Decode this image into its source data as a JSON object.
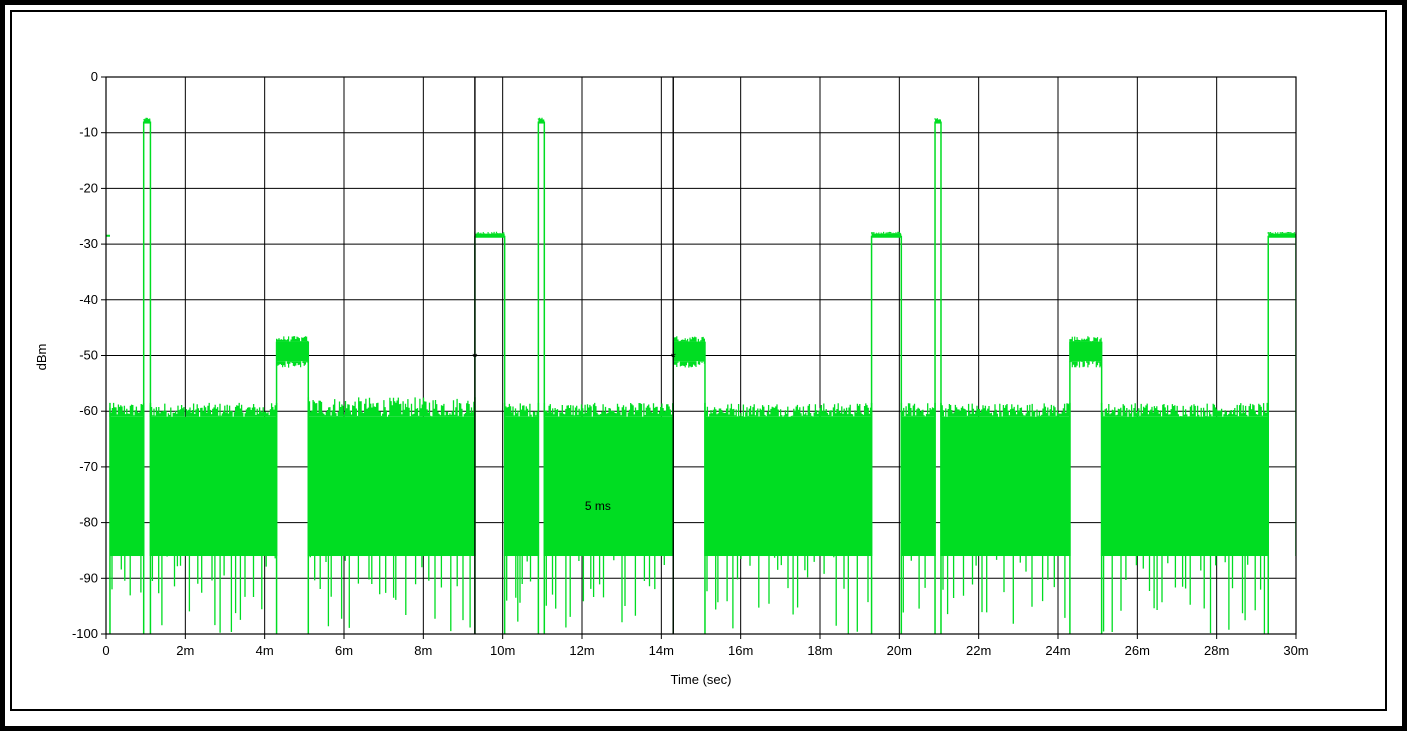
{
  "colors": {
    "trace": "#00dd22",
    "grid": "#000000",
    "background": "#ffffff"
  },
  "chart_data": {
    "type": "line",
    "title": "",
    "xlabel": "Time (sec)",
    "ylabel": "dBm",
    "xlim": [
      0,
      30
    ],
    "ylim": [
      -100,
      0
    ],
    "x_unit": "ms",
    "grid": true,
    "x_ticks": [
      {
        "v": 0,
        "label": "0"
      },
      {
        "v": 2,
        "label": "2m"
      },
      {
        "v": 4,
        "label": "4m"
      },
      {
        "v": 6,
        "label": "6m"
      },
      {
        "v": 8,
        "label": "8m"
      },
      {
        "v": 10,
        "label": "10m"
      },
      {
        "v": 12,
        "label": "12m"
      },
      {
        "v": 14,
        "label": "14m"
      },
      {
        "v": 16,
        "label": "16m"
      },
      {
        "v": 18,
        "label": "18m"
      },
      {
        "v": 20,
        "label": "20m"
      },
      {
        "v": 22,
        "label": "22m"
      },
      {
        "v": 24,
        "label": "24m"
      },
      {
        "v": 26,
        "label": "26m"
      },
      {
        "v": 28,
        "label": "28m"
      },
      {
        "v": 30,
        "label": "30m"
      }
    ],
    "y_ticks": [
      {
        "v": 0,
        "label": "0"
      },
      {
        "v": -10,
        "label": "-10"
      },
      {
        "v": -20,
        "label": "-20"
      },
      {
        "v": -30,
        "label": "-30"
      },
      {
        "v": -40,
        "label": "-40"
      },
      {
        "v": -50,
        "label": "-50"
      },
      {
        "v": -60,
        "label": "-60"
      },
      {
        "v": -70,
        "label": "-70"
      },
      {
        "v": -80,
        "label": "-80"
      },
      {
        "v": -90,
        "label": "-90"
      },
      {
        "v": -100,
        "label": "-100"
      }
    ],
    "series": [
      {
        "segments": [
          {
            "kind": "noise",
            "x0": 0.1,
            "x1": 0.95,
            "top": -61,
            "bottom": -86,
            "peak": -58.5
          },
          {
            "kind": "burst",
            "x0": 0.95,
            "x1": 1.12,
            "level": -8
          },
          {
            "kind": "noise",
            "x0": 1.12,
            "x1": 4.3,
            "top": -61,
            "bottom": -86,
            "peak": -58.5
          },
          {
            "kind": "burst",
            "x0": 4.3,
            "x1": 5.1,
            "level": -47.5,
            "low": -51
          },
          {
            "kind": "noise",
            "x0": 5.1,
            "x1": 9.3,
            "top": -61,
            "bottom": -86,
            "peak": -57.5
          },
          {
            "kind": "burst",
            "x0": 9.3,
            "x1": 10.05,
            "level": -28.5
          },
          {
            "kind": "noise",
            "x0": 10.05,
            "x1": 10.9,
            "top": -61,
            "bottom": -86,
            "peak": -58.5
          },
          {
            "kind": "burst",
            "x0": 10.9,
            "x1": 11.05,
            "level": -8
          },
          {
            "kind": "noise",
            "x0": 11.05,
            "x1": 14.3,
            "top": -61,
            "bottom": -86,
            "peak": -58.5
          },
          {
            "kind": "burst",
            "x0": 14.3,
            "x1": 15.1,
            "level": -47.5,
            "low": -51
          },
          {
            "kind": "noise",
            "x0": 15.1,
            "x1": 19.3,
            "top": -61,
            "bottom": -86,
            "peak": -58.5
          },
          {
            "kind": "burst",
            "x0": 19.3,
            "x1": 20.05,
            "level": -28.5
          },
          {
            "kind": "noise",
            "x0": 20.05,
            "x1": 20.9,
            "top": -61,
            "bottom": -86,
            "peak": -58.5
          },
          {
            "kind": "burst",
            "x0": 20.9,
            "x1": 21.05,
            "level": -8
          },
          {
            "kind": "noise",
            "x0": 21.05,
            "x1": 24.3,
            "top": -61,
            "bottom": -86,
            "peak": -58.5
          },
          {
            "kind": "burst",
            "x0": 24.3,
            "x1": 25.1,
            "level": -47.5,
            "low": -51
          },
          {
            "kind": "noise",
            "x0": 25.1,
            "x1": 29.3,
            "top": -61,
            "bottom": -86,
            "peak": -58.5
          },
          {
            "kind": "burst",
            "x0": 29.3,
            "x1": 30,
            "level": -28.5
          }
        ]
      }
    ],
    "start_level": -28.5,
    "markers": [
      {
        "x": 9.3,
        "y": -50,
        "symbol": "*"
      },
      {
        "x": 14.3,
        "y": -50,
        "symbol": "*"
      }
    ],
    "cursor_lines": [
      9.3,
      14.3
    ],
    "annotations": [
      {
        "text": "5 ms",
        "x": 12.4,
        "y": -77
      }
    ]
  }
}
